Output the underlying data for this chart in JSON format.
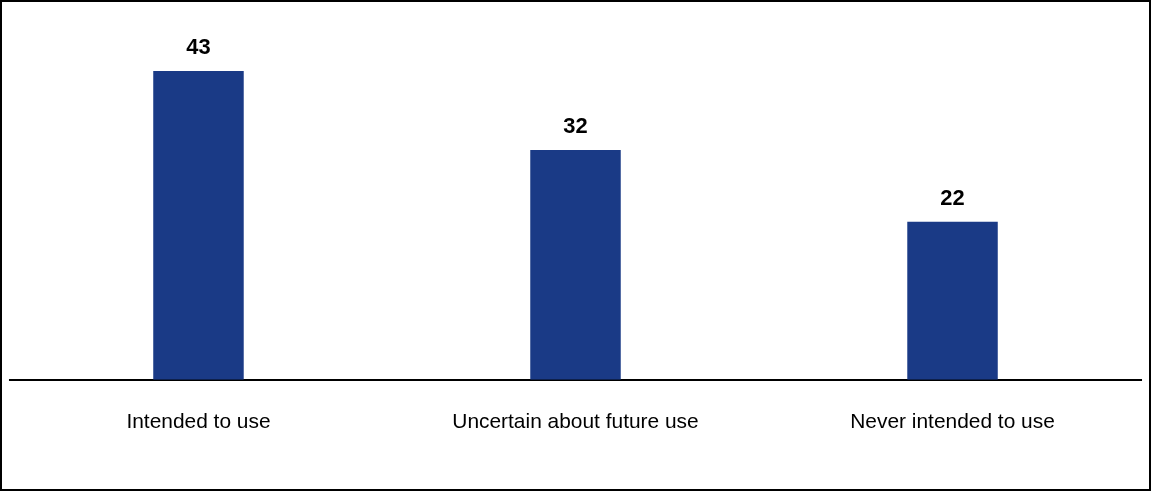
{
  "chart_data": {
    "type": "bar",
    "categories": [
      "Intended to use",
      "Uncertain about future use",
      "Never intended to use"
    ],
    "values": [
      43,
      32,
      22
    ],
    "color": "#1a3a86",
    "data_labels": true,
    "grid": false,
    "legend": false
  }
}
